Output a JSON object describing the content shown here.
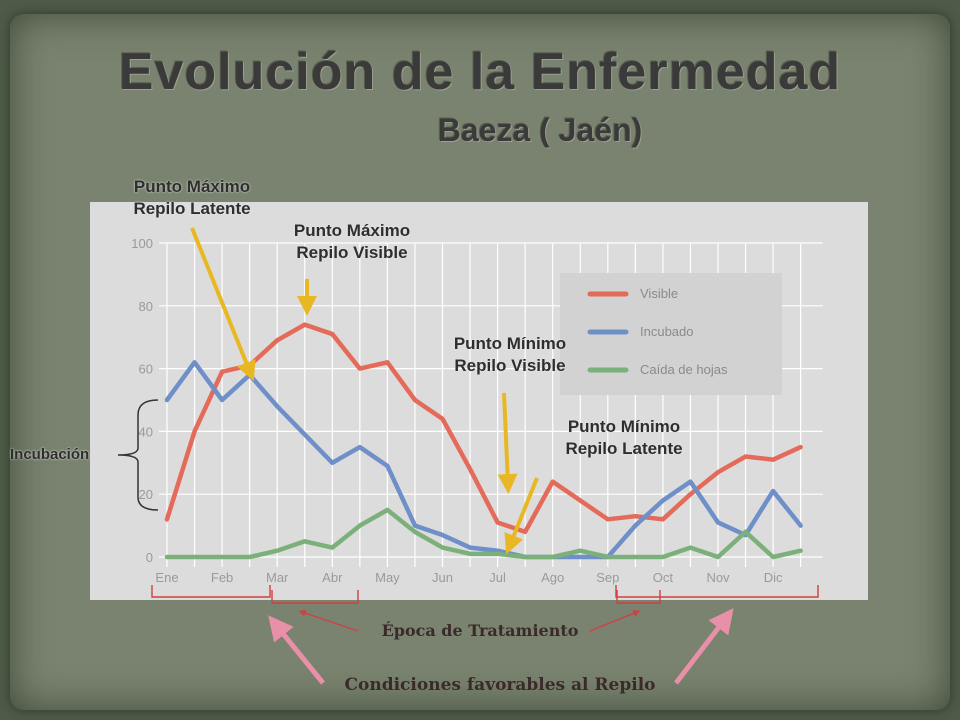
{
  "title": "Evolución de la Enfermedad",
  "subtitle": "Baeza ( Jaén)",
  "annotations": {
    "max_latent": [
      "Punto  Máximo",
      "Repilo Latente"
    ],
    "max_visible": [
      "Punto Máximo",
      "Repilo Visible"
    ],
    "min_visible": [
      "Punto Mínimo",
      "Repilo Visible"
    ],
    "min_latent": [
      "Punto Mínimo",
      "Repilo Latente"
    ],
    "incubacion": "Incubación",
    "epoca_tratamiento": "Época de Tratamiento",
    "condiciones": "Condiciones favorables al Repilo"
  },
  "colors": {
    "visible": "#e46a5a",
    "incubado": "#6f8fc8",
    "caida": "#7cb07a",
    "arrow_yellow": "#e8b824",
    "arrow_pink": "#e890a8",
    "bracket_red": "#d04040"
  },
  "chart_data": {
    "type": "line",
    "x": [
      0,
      0.5,
      1,
      1.5,
      2,
      2.5,
      3,
      3.5,
      4,
      4.5,
      5,
      5.5,
      6,
      6.5,
      7,
      7.5,
      8,
      8.5,
      9,
      9.5,
      10,
      10.5,
      11,
      11.5
    ],
    "tick_labels": [
      "Ene",
      "Feb",
      "Mar",
      "Abr",
      "May",
      "Jun",
      "Jul",
      "Ago",
      "Sep",
      "Oct",
      "Nov",
      "Dic"
    ],
    "ylim": [
      0,
      100
    ],
    "yticks": [
      0,
      20,
      40,
      60,
      80,
      100
    ],
    "grid": true,
    "legend_position": "top-right",
    "series": [
      {
        "name": "Visible",
        "color": "#e46a5a",
        "values": [
          12,
          40,
          59,
          61,
          69,
          74,
          71,
          60,
          62,
          50,
          44,
          28,
          11,
          8,
          24,
          18,
          12,
          13,
          12,
          20,
          27,
          32,
          31,
          35
        ]
      },
      {
        "name": "Incubado",
        "color": "#6f8fc8",
        "values": [
          50,
          62,
          50,
          58,
          48,
          39,
          30,
          35,
          29,
          10,
          7,
          3,
          2,
          0,
          0,
          0,
          0,
          10,
          18,
          24,
          11,
          7,
          21,
          10
        ]
      },
      {
        "name": "Caída de hojas",
        "color": "#7cb07a",
        "values": [
          0,
          0,
          0,
          0,
          2,
          5,
          3,
          10,
          15,
          8,
          3,
          1,
          1,
          0,
          0,
          2,
          0,
          0,
          0,
          3,
          0,
          8,
          0,
          2
        ]
      }
    ]
  }
}
